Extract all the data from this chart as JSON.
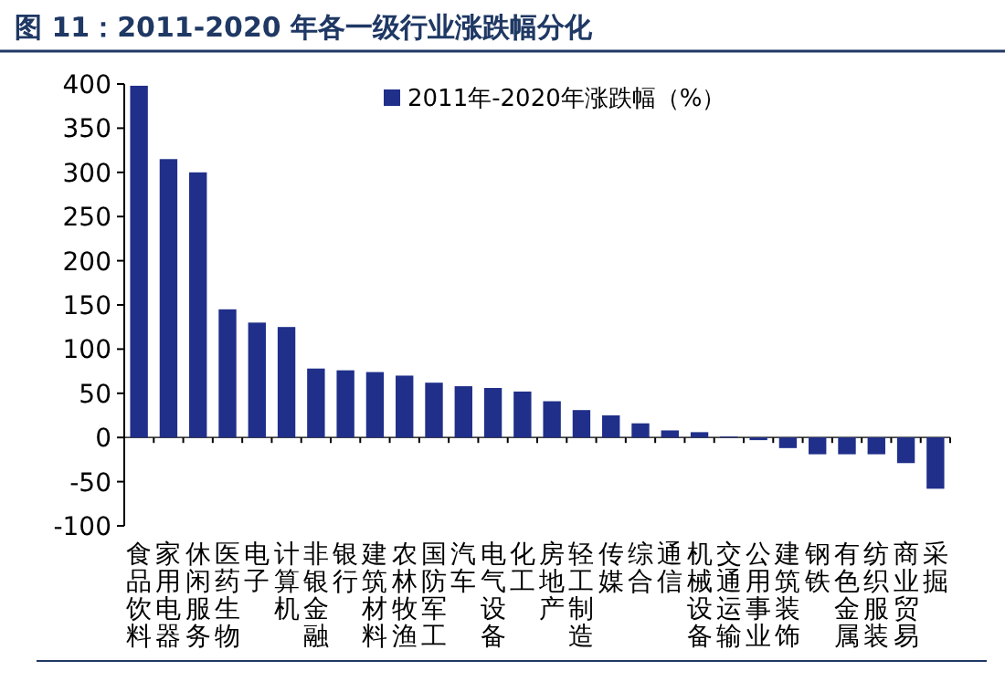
{
  "chart_data": {
    "type": "bar",
    "title": "图 11：2011-2020 年各一级行业涨跌幅分化",
    "categories": [
      "食品饮料",
      "家用电器",
      "休闲服务",
      "医药生物",
      "电子",
      "计算机",
      "非银金融",
      "银行",
      "建筑材料",
      "农林牧渔",
      "国防军工",
      "汽车",
      "电气设备",
      "化工",
      "房地产",
      "轻工制造",
      "传媒",
      "综合",
      "通信",
      "机械设备",
      "交通运输",
      "公用事业",
      "建筑装饰",
      "钢铁",
      "有色金属",
      "纺织服装",
      "商业贸易",
      "采掘"
    ],
    "series": [
      {
        "name": "2011年-2020年涨跌幅（%）",
        "color": "#1f2f8a",
        "values": [
          398,
          315,
          300,
          145,
          130,
          125,
          78,
          76,
          74,
          70,
          62,
          58,
          56,
          52,
          41,
          31,
          25,
          16,
          8,
          6,
          1,
          -3,
          -12,
          -19,
          -19,
          -19,
          -29,
          -58
        ]
      }
    ],
    "ylim": [
      -100,
      400
    ],
    "yticks": [
      -100,
      -50,
      0,
      50,
      100,
      150,
      200,
      250,
      300,
      350,
      400
    ],
    "legend": "top right"
  }
}
